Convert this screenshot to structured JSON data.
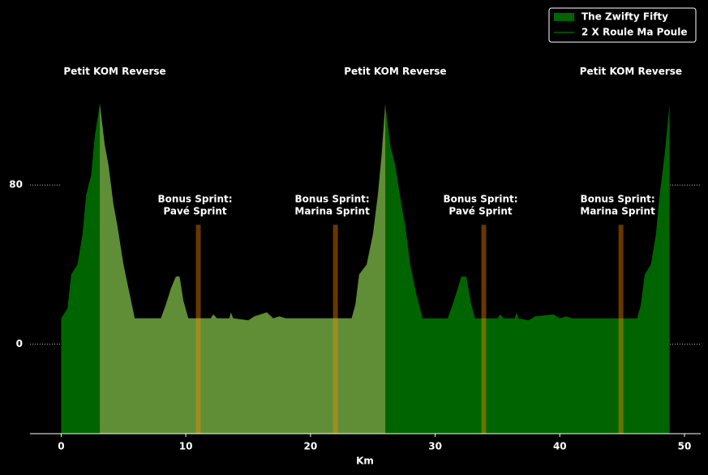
{
  "chart_data": {
    "type": "area",
    "xlabel": "Km",
    "xlim": [
      -2.5,
      51.3
    ],
    "ylim": [
      -45,
      173
    ],
    "xticks": [
      0,
      10,
      20,
      30,
      40,
      50
    ],
    "yticks": [
      0,
      80
    ],
    "grid": true,
    "legend": "upper right",
    "series": [
      {
        "name": "The Zwifty Fifty",
        "color": "#006400",
        "kind": "area",
        "x": [
          0,
          0.5,
          0.8,
          1.3,
          1.7,
          2.0,
          2.4,
          2.7,
          3.1,
          3.5,
          3.8,
          4.2,
          4.5,
          5.0,
          5.5,
          5.9,
          8.0,
          8.4,
          8.8,
          9.2,
          9.5,
          9.8,
          10.2,
          12.0,
          12.2,
          12.5,
          13.5,
          13.6,
          13.8,
          15.0,
          15.5,
          16.5,
          17.0,
          17.5,
          18.0,
          23.3,
          23.6,
          23.9,
          24.5,
          25.0,
          25.4,
          25.7,
          26.0,
          26.4,
          26.8,
          27.3,
          27.6,
          28.0,
          28.5,
          29.0,
          31.0,
          31.4,
          31.8,
          32.1,
          32.5,
          32.9,
          33.2,
          35.0,
          35.2,
          35.5,
          36.4,
          36.5,
          36.7,
          37.5,
          38.0,
          39.5,
          40.0,
          40.5,
          41.0,
          46.2,
          46.5,
          46.8,
          47.3,
          47.7,
          48.0,
          48.4,
          48.8
        ],
        "values": [
          13,
          18,
          35,
          40,
          55,
          75,
          85,
          105,
          121,
          100,
          90,
          70,
          60,
          40,
          25,
          13,
          13,
          20,
          28,
          34,
          34,
          22,
          13,
          13,
          15,
          13,
          13,
          16,
          13,
          12,
          14,
          16,
          13,
          14,
          13,
          13,
          20,
          35,
          40,
          55,
          75,
          95,
          121,
          100,
          90,
          70,
          60,
          40,
          25,
          13,
          13,
          20,
          28,
          34,
          34,
          20,
          13,
          13,
          15,
          13,
          13,
          16,
          13,
          12,
          14,
          15,
          13,
          14,
          13,
          13,
          20,
          35,
          40,
          55,
          75,
          95,
          121
        ]
      },
      {
        "name": "2 X Roule Ma Poule",
        "color": "#006400",
        "kind": "line",
        "x": [
          3.1,
          5.9,
          10.2,
          18.0,
          23.3,
          26.0
        ],
        "values": [
          121,
          13,
          13,
          13,
          13,
          121
        ]
      }
    ],
    "highlight": {
      "x": [
        3.1,
        26.0
      ],
      "color": "#bdb76b"
    },
    "sprints": [
      {
        "x": 11.0,
        "height": 60,
        "label": [
          "Bonus Sprint:",
          "Pavé Sprint"
        ]
      },
      {
        "x": 22.0,
        "height": 60,
        "label": [
          "Bonus Sprint:",
          "Marina Sprint"
        ]
      },
      {
        "x": 33.9,
        "height": 60,
        "label": [
          "Bonus Sprint:",
          "Pavé Sprint"
        ]
      },
      {
        "x": 44.9,
        "height": 60,
        "label": [
          "Bonus Sprint:",
          "Marina Sprint"
        ]
      }
    ],
    "sprint_color": "#ff8c00",
    "annotations": [
      {
        "x": 4.3,
        "y": 137,
        "text": "Petit KOM Reverse"
      },
      {
        "x": 26.8,
        "y": 137,
        "text": "Petit KOM Reverse"
      },
      {
        "x": 45.7,
        "y": 137,
        "text": "Petit KOM Reverse"
      }
    ]
  }
}
